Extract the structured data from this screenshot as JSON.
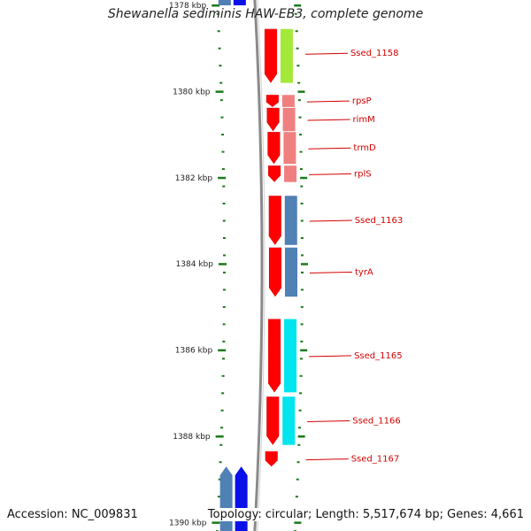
{
  "title": "Shewanella sediminis HAW-EB3, complete genome",
  "accession": "Accession: NC_009831",
  "summary": "Topology: circular; Length: 5,517,674 bp; Genes: 4,661",
  "colors": {
    "backbone": "#8a8a8a",
    "tick": "#1a7a1a",
    "forward": "#ff0000",
    "label": "#d40000",
    "lime": "#a4e83a",
    "pink": "#f08080",
    "steel": "#4f81b5",
    "cyan": "#00e5ee",
    "blue": "#0a10e8"
  },
  "scale": {
    "major_ticks": [
      {
        "kbp": 1378,
        "label": "1378 kbp"
      },
      {
        "kbp": 1380,
        "label": "1380 kbp"
      },
      {
        "kbp": 1382,
        "label": "1382 kbp"
      },
      {
        "kbp": 1384,
        "label": "1384 kbp"
      },
      {
        "kbp": 1386,
        "label": "1386 kbp"
      },
      {
        "kbp": 1388,
        "label": "1388 kbp"
      },
      {
        "kbp": 1390,
        "label": "1390 kbp"
      }
    ]
  },
  "genes": [
    {
      "label": "Ssed_1158",
      "start": 1378.55,
      "end": 1379.8,
      "strand": "forward",
      "color": "lime"
    },
    {
      "label": "rpsP",
      "start": 1380.08,
      "end": 1380.36,
      "strand": "forward",
      "color": "pink"
    },
    {
      "label": "rimM",
      "start": 1380.38,
      "end": 1380.92,
      "strand": "forward",
      "color": "pink"
    },
    {
      "label": "trmD",
      "start": 1380.94,
      "end": 1381.68,
      "strand": "forward",
      "color": "pink"
    },
    {
      "label": "rplS",
      "start": 1381.72,
      "end": 1382.1,
      "strand": "forward",
      "color": "pink"
    },
    {
      "label": "Ssed_1163",
      "start": 1382.42,
      "end": 1383.56,
      "strand": "forward",
      "color": "steel"
    },
    {
      "label": "tyrA",
      "start": 1383.62,
      "end": 1384.76,
      "strand": "forward",
      "color": "steel"
    },
    {
      "label": "Ssed_1165",
      "start": 1385.28,
      "end": 1386.98,
      "strand": "forward",
      "color": "cyan"
    },
    {
      "label": "Ssed_1166",
      "start": 1387.08,
      "end": 1388.2,
      "strand": "forward",
      "color": "cyan"
    },
    {
      "label": "Ssed_1167",
      "start": 1388.35,
      "end": 1388.7,
      "strand": "forward",
      "color": "none"
    }
  ],
  "reverse_genes": [
    {
      "start": 1377.7,
      "end": 1378.0,
      "color": "blue"
    },
    {
      "start": 1377.7,
      "end": 1378.0,
      "color": "steel"
    },
    {
      "start": 1388.7,
      "end": 1390.3,
      "color": "steel"
    },
    {
      "start": 1388.7,
      "end": 1390.3,
      "color": "blue"
    }
  ]
}
